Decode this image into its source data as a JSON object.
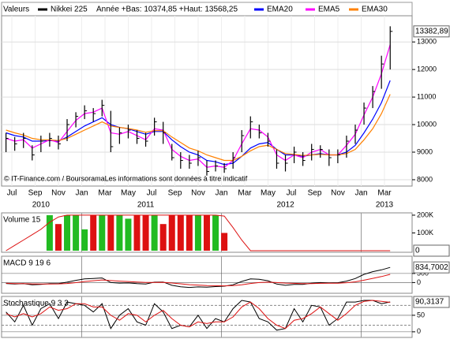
{
  "chart_data": [
    {
      "type": "ohlc",
      "panel_label": "Valeurs",
      "title": "Année +Bas: 10374,85 +Haut: 13568,25",
      "annotation": "© IT-Finance.com / BoursoramaLes informations sont données à titre indicatif",
      "x_labels": [
        "Jul",
        "Sep",
        "Nov",
        "Jan",
        "Mar",
        "May",
        "Jul",
        "Sep",
        "Nov",
        "Jan",
        "Mar",
        "May",
        "Jul",
        "Sep",
        "Nov",
        "Jan",
        "Mar"
      ],
      "year_labels": [
        "2010",
        "2011",
        "2012",
        "2013"
      ],
      "ylim": [
        7770,
        13950
      ],
      "yticks": [
        8000,
        9000,
        10000,
        11000,
        12000,
        13000
      ],
      "grid": true,
      "series": [
        {
          "name": "Nikkei 225",
          "color": "#000000",
          "high": [
            9700,
            9550,
            9700,
            9250,
            9600,
            9700,
            9600,
            10200,
            10450,
            10700,
            10600,
            10900,
            10500,
            9900,
            10000,
            9800,
            9700,
            10250,
            10100,
            9300,
            9000,
            8900,
            9050,
            8700,
            8700,
            8600,
            9000,
            9800,
            10300,
            10000,
            9700,
            9100,
            8900,
            9200,
            9000,
            9300,
            9250,
            9100,
            9100,
            9600,
            10000,
            10800,
            11400,
            12500,
            13568.25
          ],
          "low": [
            9000,
            9050,
            9150,
            8700,
            9000,
            9200,
            9100,
            9400,
            9900,
            10200,
            10100,
            10300,
            9000,
            9300,
            9500,
            9300,
            9200,
            9600,
            9300,
            8700,
            8400,
            8400,
            8500,
            8150,
            8300,
            8250,
            8400,
            9000,
            9500,
            9500,
            9200,
            8400,
            8300,
            8600,
            8500,
            8700,
            8800,
            8500,
            8600,
            8800,
            9300,
            10000,
            10600,
            11300,
            12000
          ],
          "close": [
            9500,
            9300,
            9500,
            8900,
            9400,
            9500,
            9300,
            10000,
            10300,
            10500,
            10400,
            10700,
            9200,
            9700,
            9800,
            9500,
            9400,
            10100,
            9700,
            8800,
            8700,
            8600,
            8800,
            8300,
            8500,
            8400,
            8800,
            9600,
            10100,
            9700,
            9400,
            8600,
            8600,
            9000,
            8700,
            9100,
            9100,
            8800,
            8900,
            9400,
            9800,
            10600,
            11200,
            12200,
            13382.89
          ],
          "last_value_label": "13382,89"
        },
        {
          "name": "EMA20",
          "color": "#0000ff",
          "values": [
            9700,
            9600,
            9550,
            9400,
            9400,
            9420,
            9400,
            9550,
            9750,
            9950,
            10100,
            10250,
            10000,
            9900,
            9850,
            9750,
            9650,
            9750,
            9750,
            9450,
            9200,
            9000,
            8900,
            8700,
            8650,
            8550,
            8600,
            8850,
            9150,
            9300,
            9350,
            9100,
            8900,
            8900,
            8850,
            8900,
            8950,
            8900,
            8900,
            9000,
            9250,
            9700,
            10200,
            10800,
            11600
          ]
        },
        {
          "name": "EMA5",
          "color": "#ff00ff",
          "values": [
            9500,
            9400,
            9450,
            9150,
            9300,
            9450,
            9350,
            9750,
            10150,
            10400,
            10450,
            10600,
            9700,
            9650,
            9750,
            9600,
            9450,
            9850,
            9800,
            9100,
            8850,
            8700,
            8750,
            8450,
            8500,
            8450,
            8700,
            9300,
            9850,
            9800,
            9550,
            8900,
            8700,
            8900,
            8800,
            9000,
            9100,
            8900,
            8900,
            9250,
            9650,
            10350,
            11000,
            11850,
            12900
          ]
        },
        {
          "name": "EMA30",
          "color": "#ff8000",
          "values": [
            9800,
            9700,
            9620,
            9500,
            9450,
            9450,
            9420,
            9500,
            9650,
            9800,
            9950,
            10100,
            9950,
            9900,
            9860,
            9800,
            9720,
            9780,
            9780,
            9550,
            9350,
            9150,
            9050,
            8900,
            8800,
            8700,
            8700,
            8850,
            9050,
            9200,
            9250,
            9100,
            8950,
            8920,
            8880,
            8900,
            8920,
            8900,
            8900,
            8950,
            9100,
            9450,
            9850,
            10400,
            11100
          ]
        }
      ]
    },
    {
      "type": "bar",
      "title": "Volume 15",
      "up_color": "#22bb22",
      "down_color": "#dd1111",
      "values": [
        null,
        null,
        null,
        null,
        null,
        200000,
        150000,
        200000,
        200000,
        120000,
        200000,
        200000,
        200000,
        200000,
        180000,
        200000,
        200000,
        200000,
        150000,
        200000,
        200000,
        200000,
        200000,
        200000,
        200000,
        100000,
        null,
        null,
        null,
        null,
        null,
        null,
        null,
        null,
        null,
        null,
        null,
        null,
        null,
        null,
        null,
        null,
        null,
        null,
        null
      ],
      "ma_color": "#dd1111",
      "ma_values": [
        0,
        30000,
        60000,
        90000,
        120000,
        160000,
        190000,
        200000,
        200000,
        200000,
        200000,
        200000,
        200000,
        200000,
        200000,
        200000,
        200000,
        200000,
        200000,
        200000,
        200000,
        200000,
        200000,
        200000,
        200000,
        195000,
        130000,
        60000,
        0,
        0,
        0,
        0,
        0,
        0,
        0,
        0,
        0,
        0,
        0,
        0,
        0,
        0,
        0,
        0,
        0
      ],
      "last_value_label": "0",
      "ylim": [
        -9000,
        213000
      ],
      "yticks": [
        {
          "value": 100000,
          "label": "100K"
        },
        {
          "value": 200000,
          "label": "200K"
        }
      ]
    },
    {
      "type": "line",
      "title": "MACD 9 19 6",
      "series": [
        {
          "color": "#000000",
          "values": [
            -50,
            -80,
            -60,
            -120,
            -100,
            -60,
            -60,
            20,
            120,
            200,
            220,
            250,
            0,
            -30,
            -20,
            -60,
            -80,
            20,
            30,
            -150,
            -230,
            -270,
            -240,
            -250,
            -220,
            -200,
            -120,
            60,
            200,
            180,
            100,
            -80,
            -150,
            -100,
            -100,
            -40,
            0,
            -20,
            -10,
            80,
            220,
            450,
            600,
            700,
            834.7002
          ]
        },
        {
          "color": "#dd1111",
          "values": [
            -40,
            -55,
            -57,
            -75,
            -82,
            -76,
            -72,
            -50,
            -5,
            55,
            100,
            145,
            110,
            80,
            55,
            30,
            5,
            10,
            15,
            -25,
            -70,
            -115,
            -140,
            -165,
            -175,
            -180,
            -170,
            -120,
            -50,
            0,
            20,
            0,
            -30,
            -45,
            -60,
            -55,
            -45,
            -40,
            -35,
            -10,
            40,
            130,
            230,
            330,
            450
          ]
        }
      ],
      "last_value_label": "834,7002",
      "ylim": [
        -590,
        1450
      ],
      "yticks": [
        0,
        500
      ]
    },
    {
      "type": "line",
      "title": "Stochastique 9 3 3",
      "series": [
        {
          "color": "#000000",
          "values": [
            60,
            30,
            80,
            20,
            70,
            85,
            40,
            90,
            85,
            80,
            60,
            85,
            10,
            50,
            70,
            30,
            20,
            85,
            60,
            10,
            20,
            15,
            50,
            10,
            40,
            30,
            70,
            95,
            90,
            40,
            30,
            5,
            10,
            70,
            30,
            80,
            75,
            20,
            40,
            90,
            90,
            95,
            95,
            85,
            90.3137
          ]
        },
        {
          "color": "#dd1111",
          "values": [
            55,
            45,
            55,
            45,
            55,
            75,
            65,
            70,
            85,
            85,
            75,
            75,
            50,
            35,
            55,
            50,
            30,
            50,
            65,
            40,
            20,
            15,
            30,
            25,
            30,
            30,
            45,
            75,
            90,
            70,
            40,
            20,
            10,
            35,
            40,
            55,
            75,
            55,
            35,
            55,
            80,
            92,
            95,
            92,
            89
          ]
        }
      ],
      "last_value_label": "90,3137",
      "levels": [
        20,
        80
      ],
      "ylim": [
        -17,
        107
      ],
      "yticks": [
        0,
        50
      ]
    }
  ]
}
